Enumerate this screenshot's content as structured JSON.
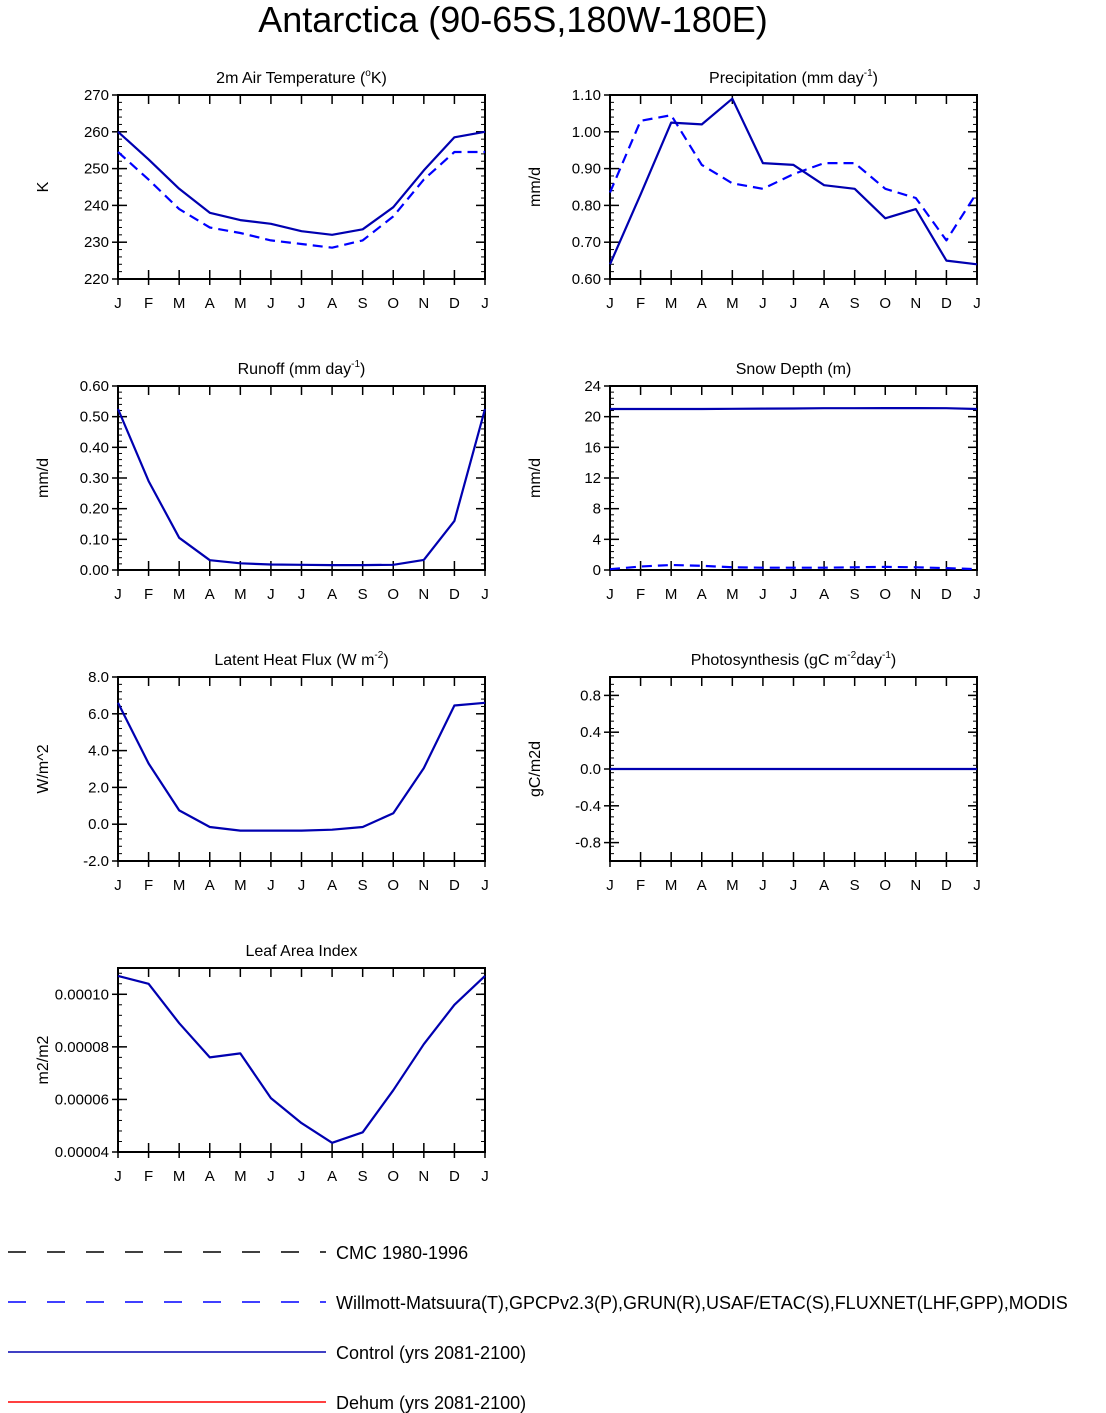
{
  "page": {
    "title": "Antarctica (90-65S,180W-180E)"
  },
  "months": [
    "J",
    "F",
    "M",
    "A",
    "M",
    "J",
    "J",
    "A",
    "S",
    "O",
    "N",
    "D",
    "J"
  ],
  "colors": {
    "obs": "#0000ff",
    "control": "#0000b0",
    "dehum": "#ff0000",
    "cmc": "#000000",
    "axis": "#000000"
  },
  "chart_data": [
    {
      "id": "air-temp",
      "type": "line",
      "title": "2m Air Temperature (oK)",
      "title_parts": [
        {
          "t": "2m Air Temperature ("
        },
        {
          "t": "o",
          "sup": true
        },
        {
          "t": "K)"
        }
      ],
      "ylabel": "K",
      "ylim": [
        220,
        270
      ],
      "yticks": [
        220,
        230,
        240,
        250,
        260,
        270
      ],
      "yticklabels": [
        "220",
        "230",
        "240",
        "250",
        "260",
        "270"
      ],
      "series": [
        {
          "name": "Willmott-Matsuura (obs)",
          "style": "dash",
          "values": [
            254.5,
            247,
            239,
            234,
            232.5,
            230.5,
            229.5,
            228.5,
            230.5,
            237,
            247,
            254.5,
            254.5
          ]
        },
        {
          "name": "Control (yrs 2081-2100)",
          "style": "solid",
          "values": [
            260,
            252.5,
            244.5,
            238,
            236,
            235,
            233,
            232,
            233.5,
            239.5,
            249.5,
            258.5,
            260
          ]
        }
      ]
    },
    {
      "id": "precip",
      "type": "line",
      "title": "Precipitation (mm day-1)",
      "title_parts": [
        {
          "t": "Precipitation (mm day"
        },
        {
          "t": "-1",
          "sup": true
        },
        {
          "t": ")"
        }
      ],
      "ylabel": "mm/d",
      "ylim": [
        0.6,
        1.1
      ],
      "yticks": [
        0.6,
        0.7,
        0.8,
        0.9,
        1.0,
        1.1
      ],
      "yticklabels": [
        "0.60",
        "0.70",
        "0.80",
        "0.90",
        "1.00",
        "1.10"
      ],
      "series": [
        {
          "name": "GPCPv2.3 (obs)",
          "style": "dash",
          "values": [
            0.835,
            1.03,
            1.045,
            0.91,
            0.86,
            0.845,
            0.885,
            0.915,
            0.915,
            0.845,
            0.82,
            0.705,
            0.835
          ]
        },
        {
          "name": "Control (yrs 2081-2100)",
          "style": "solid",
          "values": [
            0.64,
            0.83,
            1.025,
            1.02,
            1.09,
            0.915,
            0.91,
            0.855,
            0.845,
            0.765,
            0.79,
            0.65,
            0.64
          ]
        }
      ]
    },
    {
      "id": "runoff",
      "type": "line",
      "title": "Runoff (mm day-1)",
      "title_parts": [
        {
          "t": "Runoff (mm day"
        },
        {
          "t": "-1",
          "sup": true
        },
        {
          "t": ")"
        }
      ],
      "ylabel": "mm/d",
      "ylim": [
        0.0,
        0.6
      ],
      "yticks": [
        0.0,
        0.1,
        0.2,
        0.3,
        0.4,
        0.5,
        0.6
      ],
      "yticklabels": [
        "0.00",
        "0.10",
        "0.20",
        "0.30",
        "0.40",
        "0.50",
        "0.60"
      ],
      "series": [
        {
          "name": "Control (yrs 2081-2100)",
          "style": "solid",
          "values": [
            0.525,
            0.29,
            0.105,
            0.032,
            0.022,
            0.018,
            0.017,
            0.016,
            0.016,
            0.017,
            0.033,
            0.16,
            0.525
          ]
        }
      ]
    },
    {
      "id": "snow",
      "type": "line",
      "title": "Snow Depth (m)",
      "title_parts": [
        {
          "t": "Snow Depth (m)"
        }
      ],
      "ylabel": "mm/d",
      "ylim": [
        0,
        24
      ],
      "yticks": [
        0,
        4,
        8,
        12,
        16,
        20,
        24
      ],
      "yticklabels": [
        "0",
        "4",
        "8",
        "12",
        "16",
        "20",
        "24"
      ],
      "series": [
        {
          "name": "USAF/ETAC (obs)",
          "style": "dash",
          "values": [
            0.1,
            0.45,
            0.65,
            0.55,
            0.35,
            0.3,
            0.3,
            0.3,
            0.35,
            0.4,
            0.35,
            0.25,
            0.1
          ]
        },
        {
          "name": "Control (yrs 2081-2100)",
          "style": "solid",
          "values": [
            21.0,
            21.0,
            21.0,
            21.0,
            21.02,
            21.05,
            21.07,
            21.1,
            21.1,
            21.12,
            21.12,
            21.1,
            21.0
          ]
        }
      ]
    },
    {
      "id": "lhf",
      "type": "line",
      "title": "Latent Heat Flux (W m-2)",
      "title_parts": [
        {
          "t": "Latent Heat Flux (W m"
        },
        {
          "t": "-2",
          "sup": true
        },
        {
          "t": ")"
        }
      ],
      "ylabel": "W/m^2",
      "ylim": [
        -2.0,
        8.0
      ],
      "yticks": [
        -2,
        0,
        2,
        4,
        6,
        8
      ],
      "yticklabels": [
        "-2.0",
        "0.0",
        "2.0",
        "4.0",
        "6.0",
        "8.0"
      ],
      "series": [
        {
          "name": "Control (yrs 2081-2100)",
          "style": "solid",
          "values": [
            6.6,
            3.3,
            0.75,
            -0.15,
            -0.35,
            -0.35,
            -0.35,
            -0.3,
            -0.15,
            0.6,
            3.05,
            6.45,
            6.6
          ]
        }
      ]
    },
    {
      "id": "photo",
      "type": "line",
      "title": "Photosynthesis (gC m-2day-1)",
      "title_parts": [
        {
          "t": "Photosynthesis (gC m"
        },
        {
          "t": "-2",
          "sup": true
        },
        {
          "t": "day"
        },
        {
          "t": "-1",
          "sup": true
        },
        {
          "t": ")"
        }
      ],
      "ylabel": "gC/m2d",
      "ylim": [
        -1.0,
        1.0
      ],
      "yticks": [
        -0.8,
        -0.4,
        0.0,
        0.4,
        0.8
      ],
      "yticklabels": [
        "-0.8",
        "-0.4",
        "0.0",
        "0.4",
        "0.8"
      ],
      "series": [
        {
          "name": "Control (yrs 2081-2100)",
          "style": "solid",
          "values": [
            0,
            0,
            0,
            0,
            0,
            0,
            0,
            0,
            0,
            0,
            0,
            0,
            0
          ]
        }
      ]
    },
    {
      "id": "lai",
      "type": "line",
      "title": "Leaf Area Index",
      "title_parts": [
        {
          "t": "Leaf Area Index"
        }
      ],
      "ylabel": "m2/m2",
      "ylim": [
        4e-05,
        0.00011
      ],
      "yticks": [
        4e-05,
        6e-05,
        8e-05,
        0.0001
      ],
      "yticklabels": [
        "0.00004",
        "0.00006",
        "0.00008",
        "0.00010"
      ],
      "series": [
        {
          "name": "Control (yrs 2081-2100)",
          "style": "solid",
          "values": [
            0.000107,
            0.000104,
            8.9e-05,
            7.6e-05,
            7.75e-05,
            6.05e-05,
            5.1e-05,
            4.35e-05,
            4.75e-05,
            6.35e-05,
            8.1e-05,
            9.6e-05,
            0.000107
          ]
        }
      ]
    }
  ],
  "legend": {
    "items": [
      {
        "label": "CMC 1980-1996",
        "style": "dash",
        "color": "#000000"
      },
      {
        "label": "Willmott-Matsuura(T),GPCPv2.3(P),GRUN(R),USAF/ETAC(S),FLUXNET(LHF,GPP),MODIS",
        "style": "dash",
        "color": "#0000ff"
      },
      {
        "label": "Control (yrs 2081-2100)",
        "style": "solid",
        "color": "#0000b0"
      },
      {
        "label": "Dehum (yrs 2081-2100)",
        "style": "solid",
        "color": "#ff0000"
      }
    ]
  }
}
